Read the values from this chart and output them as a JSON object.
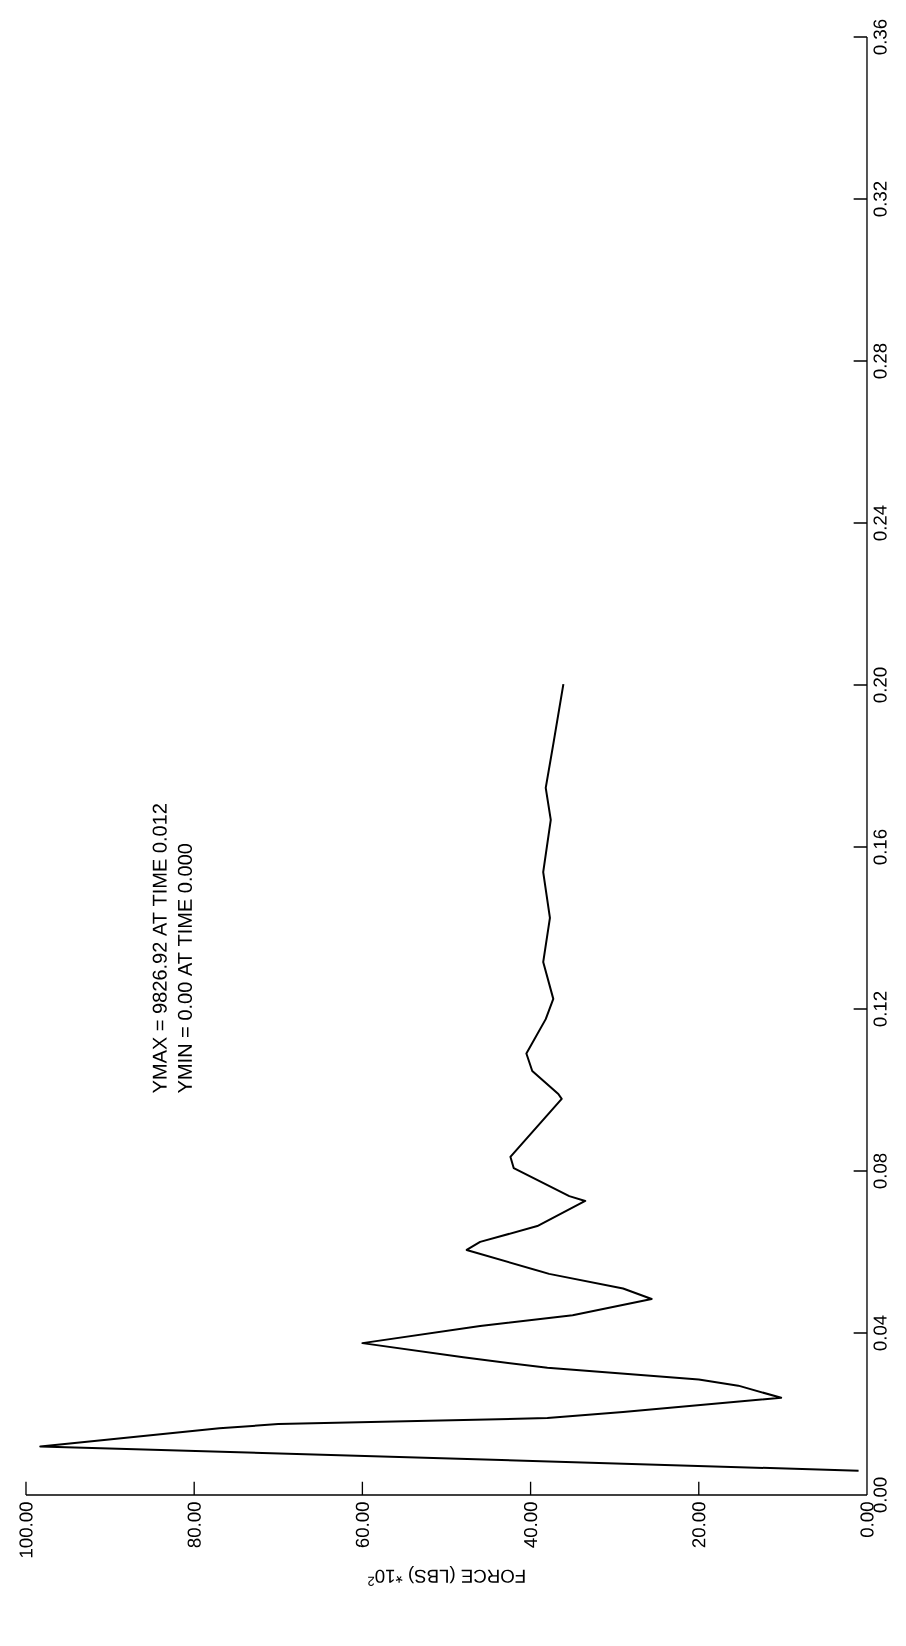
{
  "chart_data": {
    "type": "line",
    "xlabel": "FORCE (LBS) *10$^{2}$",
    "annotations": [
      "YMAX = 9826.92 AT TIME 0.012",
      "YMIN = 0.00 AT TIME 0.000"
    ],
    "x": [
      1,
      98.3,
      77,
      70,
      38,
      29,
      10.2,
      15.3,
      20,
      38,
      48,
      60,
      46,
      35,
      25.6,
      29,
      37.8,
      47.6,
      46,
      39.2,
      33.5,
      35.4,
      42,
      42.4,
      36.3,
      36.7,
      39.8,
      40.5,
      38.2,
      37.3,
      38.5,
      37.7,
      38.5,
      37.6,
      38.2,
      37.3,
      36.1
    ],
    "values": [
      0.006,
      0.012,
      0.0165,
      0.0175,
      0.019,
      0.0205,
      0.024,
      0.027,
      0.0285,
      0.0314,
      0.034,
      0.0375,
      0.0417,
      0.0444,
      0.0484,
      0.051,
      0.0546,
      0.0605,
      0.0625,
      0.0664,
      0.0726,
      0.0738,
      0.0807,
      0.0835,
      0.0978,
      0.099,
      0.1047,
      0.109,
      0.1175,
      0.1225,
      0.1316,
      0.1425,
      0.1538,
      0.1667,
      0.1746,
      0.1854,
      0.2002
    ],
    "color": "#000000",
    "line_style": "solid",
    "marker": "none",
    "ylim": [
      0,
      0.36
    ],
    "yticks": [
      {
        "value": 0,
        "label": "0.00"
      },
      {
        "value": 0.04,
        "label": "0.04"
      },
      {
        "value": 0.08,
        "label": "0.08"
      },
      {
        "value": 0.12,
        "label": "0.12"
      },
      {
        "value": 0.16,
        "label": "0.16"
      },
      {
        "value": 0.2,
        "label": "0.20"
      },
      {
        "value": 0.24,
        "label": "0.24"
      },
      {
        "value": 0.28,
        "label": "0.28"
      },
      {
        "value": 0.32,
        "label": "0.32"
      },
      {
        "value": 0.36,
        "label": "0.36"
      }
    ],
    "xlim": [
      100,
      0
    ],
    "xticks": [
      {
        "value": 100,
        "label": "100.00"
      },
      {
        "value": 80,
        "label": "80.00"
      },
      {
        "value": 60,
        "label": "60.00"
      },
      {
        "value": 40,
        "label": "40.00"
      },
      {
        "value": 20,
        "label": "20.00"
      },
      {
        "value": 0,
        "label": "0.00"
      }
    ]
  }
}
